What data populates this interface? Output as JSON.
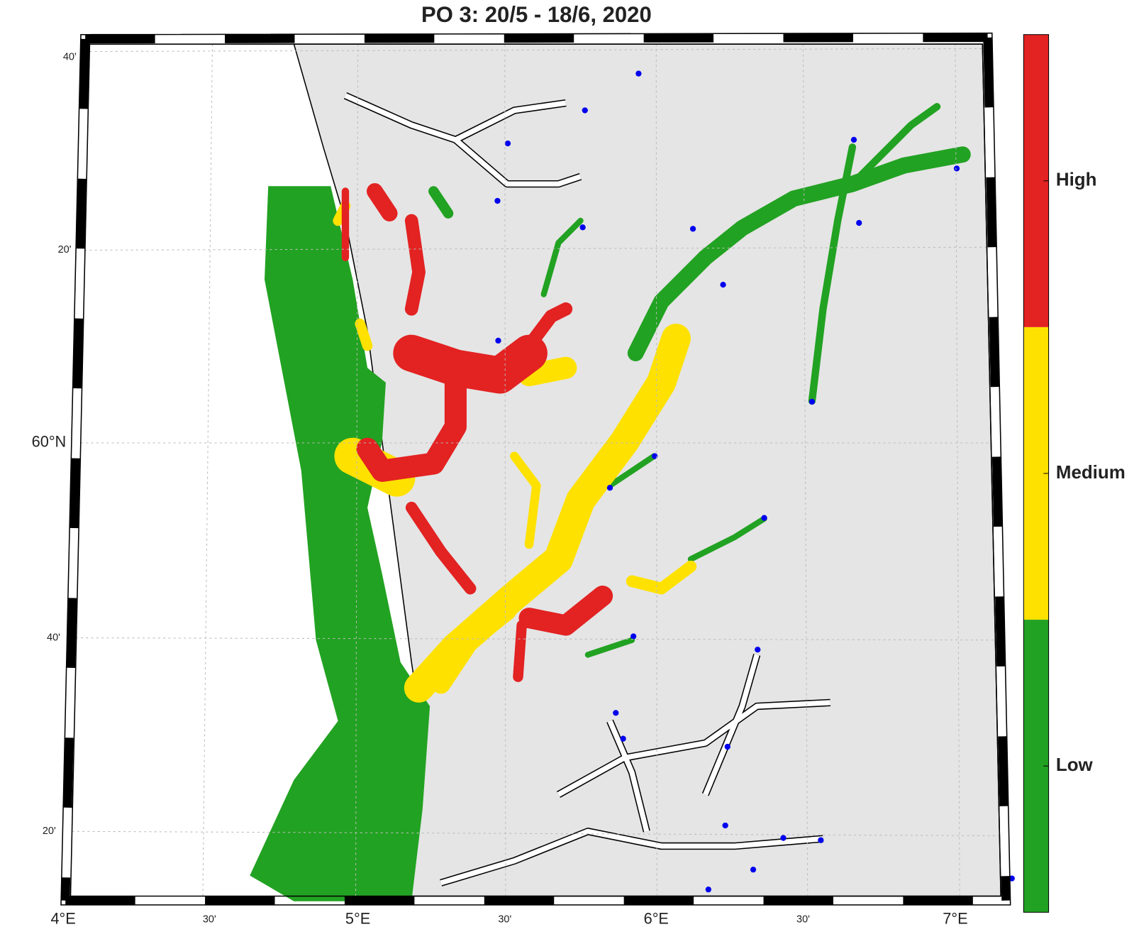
{
  "title": "PO 3: 20/5 - 18/6, 2020",
  "map": {
    "lon_labels": [
      "4°E",
      "30'",
      "5°E",
      "30'",
      "6°E",
      "30'",
      "7°E"
    ],
    "lat_labels": [
      "40'",
      "20'",
      "60°N",
      "40'",
      "20'"
    ]
  },
  "colorbar": {
    "levels": [
      {
        "label": "High",
        "color": "#e32222"
      },
      {
        "label": "Medium",
        "color": "#ffe100"
      },
      {
        "label": "Low",
        "color": "#22a222"
      }
    ]
  }
}
